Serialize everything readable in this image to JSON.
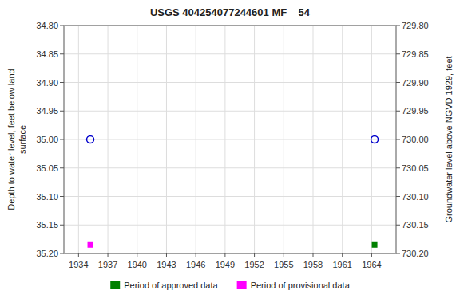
{
  "chart_data": {
    "type": "scatter",
    "title": "USGS 404254077244601 MF    54",
    "ylabel": "Depth to water level, feet below land\nsurface",
    "y2label": "Groundwater level above NGVD 1929, feet",
    "xlim": [
      1932.5,
      1966.5
    ],
    "xticks": [
      1934,
      1937,
      1940,
      1943,
      1946,
      1949,
      1952,
      1955,
      1958,
      1961,
      1964
    ],
    "ylim": [
      35.2,
      34.8
    ],
    "yticks": [
      {
        "value": 34.8,
        "label": "34.80"
      },
      34.85,
      {
        "value": 34.9,
        "label": "34.90"
      },
      34.95,
      {
        "value": 35.0,
        "label": "35.00"
      },
      35.05,
      {
        "value": 35.1,
        "label": "35.10"
      },
      35.15,
      {
        "value": 35.2,
        "label": "35.20"
      }
    ],
    "y2lim": [
      730.2,
      729.8
    ],
    "y2ticks": [
      {
        "value": 730.2,
        "label": "730.20"
      },
      730.15,
      {
        "value": 730.1,
        "label": "730.10"
      },
      730.05,
      {
        "value": 730.0,
        "label": "730.00"
      },
      729.95,
      {
        "value": 729.9,
        "label": "729.90"
      },
      729.85,
      {
        "value": 729.8,
        "label": "729.80"
      }
    ],
    "grid": true,
    "legend": "bottom",
    "series": [
      {
        "x": [
          1935.2,
          1964.3
        ],
        "values": [
          35.0,
          35.0
        ],
        "color": "#0000cc",
        "marker": "circle-open"
      },
      {
        "name": "Period of approved data",
        "x": [
          1964.3
        ],
        "values": [
          35.185
        ],
        "color": "#008000",
        "marker": "square"
      },
      {
        "name": "Period of provisional data",
        "x": [
          1935.2
        ],
        "values": [
          35.185
        ],
        "color": "#ff00ff",
        "marker": "square"
      }
    ]
  }
}
